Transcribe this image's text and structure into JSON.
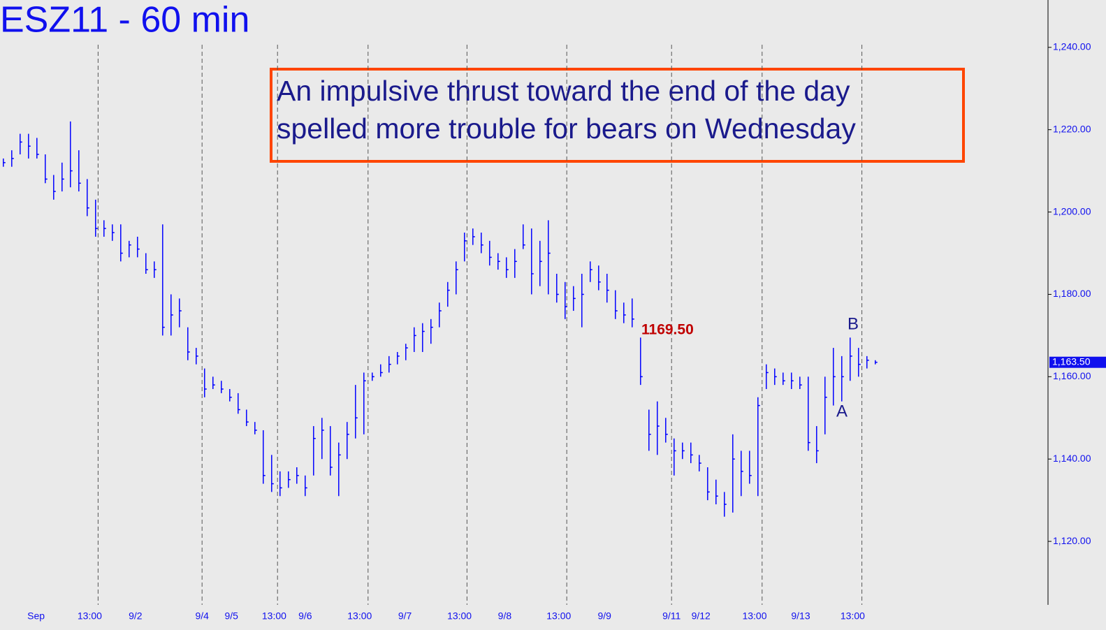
{
  "chart_data": {
    "type": "ohlc",
    "title": "ESZ11 - 60 min",
    "annotation_box": [
      "An impulsive thrust toward the end of the day",
      "spelled more trouble for bears on Wednesday"
    ],
    "color": "#0000ff",
    "high": [
      1213,
      1215,
      1219,
      1219,
      1218,
      1214,
      1209,
      1212,
      1222,
      1215,
      1208,
      1203,
      1198,
      1197,
      1197,
      1193,
      1194,
      1190,
      1188,
      1197,
      1180,
      1179,
      1172,
      1167,
      1162,
      1160,
      1159,
      1157,
      1156,
      1152,
      1149,
      1147,
      1141,
      1137,
      1137,
      1138,
      1136,
      1148,
      1150,
      1148,
      1144,
      1149,
      1158,
      1161,
      1161,
      1163,
      1165,
      1166,
      1168,
      1172,
      1173,
      1174,
      1178,
      1183,
      1188,
      1195,
      1196,
      1195,
      1193,
      1190,
      1189,
      1191,
      1197,
      1196,
      1193,
      1198,
      1185,
      1183,
      1182,
      1185,
      1188,
      1187,
      1185,
      1181,
      1178,
      1179,
      1169.5,
      1152,
      1154,
      1150,
      1145,
      1144,
      1144,
      1141,
      1138,
      1135,
      1132,
      1146,
      1142,
      1142,
      1155,
      1163,
      1162,
      1161,
      1161,
      1160,
      1160,
      1148,
      1160,
      1167,
      1165,
      1169.5,
      1167,
      1165,
      1164
    ],
    "low": [
      1211,
      1211,
      1214,
      1213,
      1213,
      1207,
      1203,
      1205,
      1206,
      1205,
      1199,
      1194,
      1194,
      1193,
      1188,
      1189,
      1189,
      1185,
      1184,
      1170,
      1170,
      1172,
      1164,
      1163,
      1155,
      1157,
      1156,
      1154,
      1151,
      1148,
      1146,
      1134,
      1132,
      1131,
      1133,
      1134,
      1131,
      1136,
      1140,
      1136,
      1131,
      1140,
      1145,
      1146,
      1159,
      1160,
      1161,
      1163,
      1164,
      1166,
      1166,
      1168,
      1172,
      1177,
      1180,
      1188,
      1192,
      1190,
      1187,
      1186,
      1184,
      1184,
      1191,
      1180,
      1182,
      1180,
      1178,
      1174,
      1176,
      1172,
      1183,
      1181,
      1178,
      1174,
      1173,
      1172,
      1158,
      1142,
      1141,
      1144,
      1136,
      1140,
      1139,
      1137,
      1130,
      1129,
      1126,
      1127,
      1131,
      1134,
      1131,
      1157,
      1158,
      1158,
      1157,
      1157,
      1142,
      1139,
      1146,
      1153,
      1154,
      1159,
      1160,
      1162,
      1163
    ],
    "close": [
      1212,
      1213,
      1217,
      1216,
      1214,
      1208,
      1205,
      1208,
      1210,
      1207,
      1201,
      1196,
      1196,
      1195,
      1190,
      1192,
      1191,
      1186,
      1186,
      1172,
      1175,
      1176,
      1166,
      1165,
      1157,
      1158,
      1157,
      1155,
      1152,
      1149,
      1147,
      1136,
      1134,
      1133,
      1135,
      1136,
      1133,
      1145,
      1147,
      1138,
      1141,
      1146,
      1150,
      1159,
      1160,
      1161,
      1163,
      1165,
      1167,
      1170,
      1171,
      1172,
      1176,
      1181,
      1186,
      1193,
      1194,
      1192,
      1189,
      1188,
      1186,
      1188,
      1192,
      1185,
      1188,
      1190,
      1180,
      1177,
      1179,
      1180,
      1186,
      1183,
      1181,
      1176,
      1175,
      1174,
      1160,
      1146,
      1148,
      1146,
      1142,
      1142,
      1141,
      1139,
      1132,
      1131,
      1129,
      1140,
      1137,
      1136,
      1153,
      1161,
      1160,
      1159,
      1159,
      1158,
      1144,
      1142,
      1155,
      1160,
      1160,
      1165,
      1163,
      1164,
      1163.5
    ],
    "xlim": [
      -0.4,
      124.6
    ],
    "xticks": [
      {
        "value": 3.9,
        "label": "Sep"
      },
      {
        "value": 10.3,
        "label": "13:00"
      },
      {
        "value": 15.75,
        "label": "9/2"
      },
      {
        "value": 23.7,
        "label": "9/4"
      },
      {
        "value": 27.2,
        "label": "9/5"
      },
      {
        "value": 32.3,
        "label": "13:00"
      },
      {
        "value": 36,
        "label": "9/6"
      },
      {
        "value": 42.5,
        "label": "13:00"
      },
      {
        "value": 47.9,
        "label": "9/7"
      },
      {
        "value": 54.4,
        "label": "13:00"
      },
      {
        "value": 59.8,
        "label": "9/8"
      },
      {
        "value": 66.25,
        "label": "13:00"
      },
      {
        "value": 71.7,
        "label": "9/9"
      },
      {
        "value": 79.7,
        "label": "9/11"
      },
      {
        "value": 83.2,
        "label": "9/12"
      },
      {
        "value": 89.6,
        "label": "13:00"
      },
      {
        "value": 95.1,
        "label": "9/13"
      },
      {
        "value": 101.3,
        "label": "13:00"
      }
    ],
    "session_lines": [
      11.3,
      23.7,
      32.7,
      43.5,
      55.3,
      67.2,
      79.7,
      90.5,
      102.4
    ],
    "ylim": [
      1100,
      1251.5
    ],
    "yticks": [
      {
        "value": 1120,
        "label": "1,120.00"
      },
      {
        "value": 1140,
        "label": "1,140.00"
      },
      {
        "value": 1160,
        "label": "1,160.00"
      },
      {
        "value": 1180,
        "label": "1,180.00"
      },
      {
        "value": 1200,
        "label": "1,200.00"
      },
      {
        "value": 1220,
        "label": "1,220.00"
      },
      {
        "value": 1240,
        "label": "1,240.00"
      }
    ],
    "last_price": {
      "value": 1163.5,
      "label": "1,163.50"
    },
    "annotations": [
      "1169.50",
      "B",
      "A"
    ]
  }
}
